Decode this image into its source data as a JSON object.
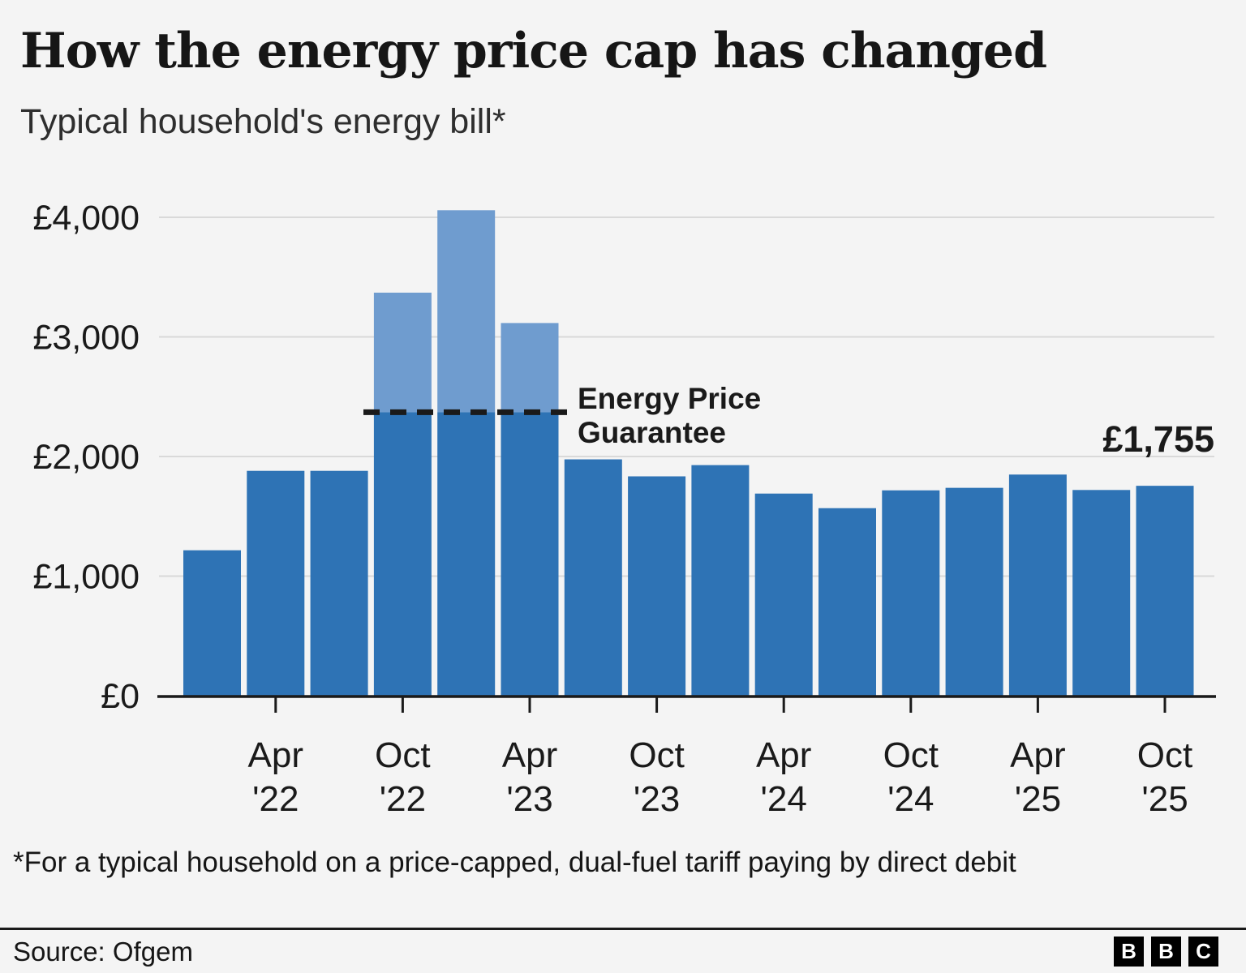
{
  "title": "How the energy price cap has changed",
  "subtitle": "Typical household's energy bill*",
  "footnote": "*For a typical household on a price-capped, dual-fuel tariff paying by direct debit",
  "source": "Source: Ofgem",
  "logo": {
    "letters": [
      "B",
      "B",
      "C"
    ]
  },
  "annotation": {
    "lines": [
      "Energy Price",
      "Guarantee"
    ],
    "value": 2370
  },
  "colors": {
    "bar": "#2e73b5",
    "bar_light": "#6f9ccf",
    "accent_label": "#2e73b5",
    "background": "#f4f4f4",
    "grid": "#d9d9d9",
    "axis": "#1a1a1a",
    "text": "#1a1a1a"
  },
  "chart_data": {
    "type": "bar",
    "title": "How the energy price cap has changed",
    "subtitle": "Typical household's energy bill*",
    "xlabel": "",
    "ylabel": "",
    "ylim": [
      0,
      4000
    ],
    "grid": true,
    "yticks": [
      0,
      1000,
      2000,
      3000,
      4000
    ],
    "ytick_labels": [
      "£0",
      "£1,000",
      "£2,000",
      "£3,000",
      "£4,000"
    ],
    "end_label": "£1,755",
    "guarantee_level": 2370,
    "bars": [
      {
        "value": 1216,
        "tick": null
      },
      {
        "value": 1880,
        "tick": [
          "Apr",
          "'22"
        ]
      },
      {
        "value": 1880,
        "tick": null
      },
      {
        "value": 3370,
        "paid": 2370,
        "tick": [
          "Oct",
          "'22"
        ]
      },
      {
        "value": 4059,
        "paid": 2370,
        "tick": null
      },
      {
        "value": 3116,
        "paid": 2370,
        "tick": [
          "Apr",
          "'23"
        ]
      },
      {
        "value": 1976,
        "tick": null
      },
      {
        "value": 1834,
        "tick": [
          "Oct",
          "'23"
        ]
      },
      {
        "value": 1928,
        "tick": null
      },
      {
        "value": 1690,
        "tick": [
          "Apr",
          "'24"
        ]
      },
      {
        "value": 1568,
        "tick": null
      },
      {
        "value": 1717,
        "tick": [
          "Oct",
          "'24"
        ]
      },
      {
        "value": 1738,
        "tick": null
      },
      {
        "value": 1849,
        "tick": [
          "Apr",
          "'25"
        ]
      },
      {
        "value": 1720,
        "tick": null
      },
      {
        "value": 1755,
        "tick": [
          "Oct",
          "'25"
        ]
      }
    ]
  }
}
